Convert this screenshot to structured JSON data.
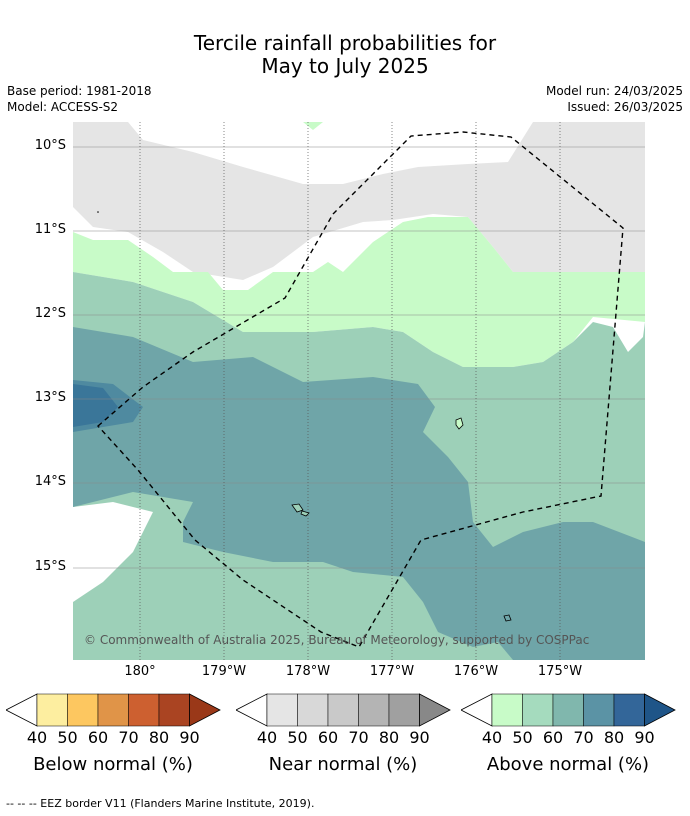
{
  "title": {
    "line1": "Tercile rainfall probabilities for",
    "line2": "May to July 2025"
  },
  "meta": {
    "base_period": "Base period: 1981-2018",
    "model": "Model: ACCESS-S2",
    "model_run": "Model run: 24/03/2025",
    "issued": "Issued: 26/03/2025"
  },
  "map": {
    "lat_labels": [
      "10°S",
      "11°S",
      "12°S",
      "13°S",
      "14°S",
      "15°S"
    ],
    "lon_labels": [
      "180°",
      "179°W",
      "178°W",
      "177°W",
      "176°W",
      "175°W"
    ],
    "copyright": "© Commonwealth of Australia 2025, Bureau of Meteorology, supported by COSPPac",
    "colors": {
      "near_normal_40": "#e5e5e5",
      "above_40": "#c8fbc8",
      "above_50": "#9dd0b8",
      "above_60": "#6fa5a8",
      "above_70": "#4f8aa0",
      "above_80": "#3a7699"
    }
  },
  "colorbars": [
    {
      "label": "Below normal (%)",
      "ticks": [
        "40",
        "50",
        "60",
        "70",
        "80",
        "90"
      ],
      "colors": [
        "#fdeea0",
        "#fdc760",
        "#e09448",
        "#cd6030",
        "#aa4422",
        "#9a3818"
      ]
    },
    {
      "label": "Near normal (%)",
      "ticks": [
        "40",
        "50",
        "60",
        "70",
        "80",
        "90"
      ],
      "colors": [
        "#e5e5e5",
        "#d8d8d8",
        "#c9c9c9",
        "#b4b4b4",
        "#a0a0a0",
        "#888888"
      ]
    },
    {
      "label": "Above normal (%)",
      "ticks": [
        "40",
        "50",
        "60",
        "70",
        "80",
        "90"
      ],
      "colors": [
        "#c8fbc8",
        "#a5dbbe",
        "#80b7ad",
        "#5b93a5",
        "#336699",
        "#1f5588"
      ]
    }
  ],
  "footnote": "--  --  -- EEZ border V11 (Flanders Marine Institute, 2019)."
}
